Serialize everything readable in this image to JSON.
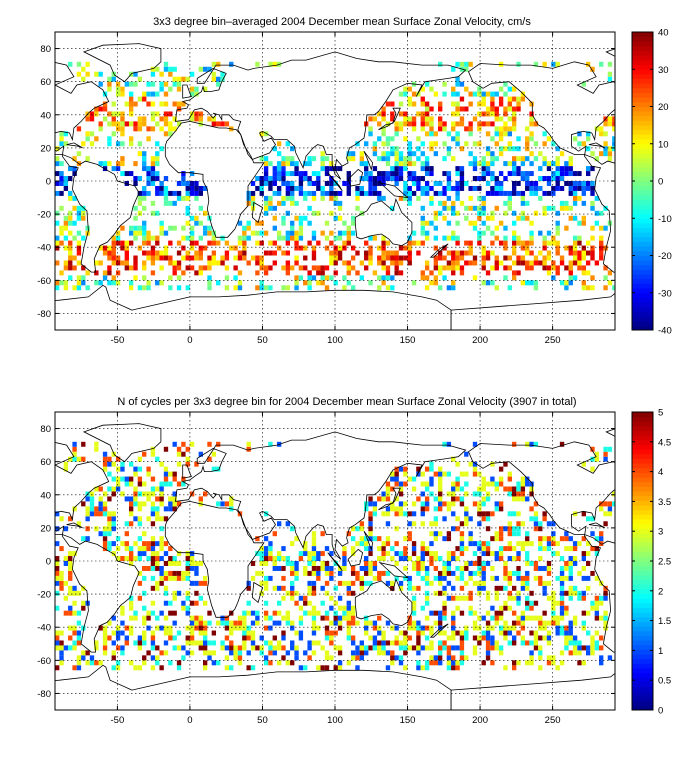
{
  "chart_data": [
    {
      "type": "heatmap",
      "title": "3x3 degree bin–averaged 2004 December mean Surface Zonal Velocity, cm/s",
      "xlim": [
        -93,
        293
      ],
      "ylim": [
        -90,
        90
      ],
      "xticks": [
        -50,
        0,
        50,
        100,
        150,
        200,
        250
      ],
      "yticks": [
        -80,
        -60,
        -40,
        -20,
        0,
        20,
        40,
        60,
        80
      ],
      "grid": true,
      "bin_size_deg": 3,
      "colorbar": {
        "min": -40,
        "max": 40,
        "ticks": [
          -40,
          -30,
          -20,
          -10,
          0,
          10,
          20,
          30,
          40
        ],
        "colormap": "jet"
      },
      "colorbar_ticks": [
        "-40",
        "-30",
        "-20",
        "-10",
        "0",
        "10",
        "20",
        "30",
        "40"
      ],
      "seed": 11
    },
    {
      "type": "heatmap",
      "title": "N of cycles per 3x3 degree bin for 2004 December mean Surface Zonal Velocity (3907 in total)",
      "xlim": [
        -93,
        293
      ],
      "ylim": [
        -90,
        90
      ],
      "xticks": [
        -50,
        0,
        50,
        100,
        150,
        200,
        250
      ],
      "yticks": [
        -80,
        -60,
        -40,
        -20,
        0,
        20,
        40,
        60,
        80
      ],
      "grid": true,
      "bin_size_deg": 3,
      "total_cycles": 3907,
      "colorbar": {
        "min": 0,
        "max": 5,
        "ticks": [
          0,
          0.5,
          1,
          1.5,
          2,
          2.5,
          3,
          3.5,
          4,
          4.5,
          5
        ],
        "colormap": "jet"
      },
      "colorbar_ticks": [
        "0",
        "0.5",
        "1",
        "1.5",
        "2",
        "2.5",
        "3",
        "3.5",
        "4",
        "4.5",
        "5"
      ],
      "seed": 29
    }
  ],
  "colors": {
    "background": "#ffffff",
    "axes": "#000000"
  }
}
